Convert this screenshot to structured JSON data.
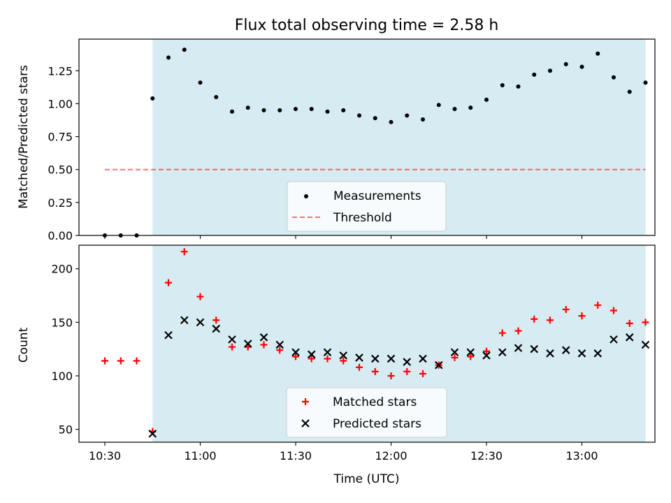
{
  "title": "Flux total observing time = 2.58 h",
  "colors": {
    "span": "#add8e6",
    "measurements": "#000000",
    "threshold": "#ff0000",
    "matched": "#ff0000",
    "predicted": "#000000"
  },
  "chart_data": [
    {
      "type": "scatter",
      "title": "Flux total observing time = 2.58 h",
      "xlabel": "",
      "ylabel": "Matched/Predicted stars",
      "ylim": [
        0.0,
        1.49
      ],
      "yticks": [
        0.0,
        0.25,
        0.5,
        0.75,
        1.0,
        1.25
      ],
      "ytick_labels": [
        "0.00",
        "0.25",
        "0.50",
        "0.75",
        "1.00",
        "1.25"
      ],
      "xticks": [
        "10:30",
        "11:00",
        "11:30",
        "12:00",
        "12:30",
        "13:00"
      ],
      "show_xticklabels": false,
      "x": [
        "10:30",
        "10:35",
        "10:40",
        "10:45",
        "10:50",
        "10:55",
        "11:00",
        "11:05",
        "11:10",
        "11:15",
        "11:20",
        "11:25",
        "11:30",
        "11:35",
        "11:40",
        "11:45",
        "11:50",
        "11:55",
        "12:00",
        "12:05",
        "12:10",
        "12:15",
        "12:20",
        "12:25",
        "12:30",
        "12:35",
        "12:40",
        "12:45",
        "12:50",
        "12:55",
        "13:00",
        "13:05",
        "13:10",
        "13:15",
        "13:20"
      ],
      "highlight_span": [
        "10:45",
        "13:20"
      ],
      "series": [
        {
          "name": "Measurements",
          "marker": "dot",
          "values": [
            0.0,
            0.0,
            0.0,
            1.04,
            1.35,
            1.41,
            1.16,
            1.05,
            0.94,
            0.97,
            0.95,
            0.95,
            0.96,
            0.96,
            0.94,
            0.95,
            0.91,
            0.89,
            0.86,
            0.91,
            0.88,
            0.99,
            0.96,
            0.97,
            1.03,
            1.14,
            1.13,
            1.22,
            1.25,
            1.3,
            1.28,
            1.38,
            1.2,
            1.09,
            1.16
          ]
        }
      ],
      "threshold": {
        "name": "Threshold",
        "value": 0.5,
        "x_start": "10:30",
        "x_end": "13:20",
        "style": "dashed"
      },
      "legend": [
        "Measurements",
        "Threshold"
      ],
      "legend_position": "lower center"
    },
    {
      "type": "scatter",
      "xlabel": "Time (UTC)",
      "ylabel": "Count",
      "ylim": [
        38,
        222
      ],
      "yticks": [
        50,
        100,
        150,
        200
      ],
      "ytick_labels": [
        "50",
        "100",
        "150",
        "200"
      ],
      "xticks": [
        "10:30",
        "11:00",
        "11:30",
        "12:00",
        "12:30",
        "13:00"
      ],
      "x": [
        "10:30",
        "10:35",
        "10:40",
        "10:45",
        "10:50",
        "10:55",
        "11:00",
        "11:05",
        "11:10",
        "11:15",
        "11:20",
        "11:25",
        "11:30",
        "11:35",
        "11:40",
        "11:45",
        "11:50",
        "11:55",
        "12:00",
        "12:05",
        "12:10",
        "12:15",
        "12:20",
        "12:25",
        "12:30",
        "12:35",
        "12:40",
        "12:45",
        "12:50",
        "12:55",
        "13:00",
        "13:05",
        "13:10",
        "13:15",
        "13:20"
      ],
      "highlight_span": [
        "10:45",
        "13:20"
      ],
      "series": [
        {
          "name": "Matched stars",
          "marker": "plus",
          "values": [
            114,
            114,
            114,
            48,
            187,
            216,
            174,
            152,
            127,
            127,
            129,
            124,
            118,
            116,
            116,
            114,
            108,
            104,
            100,
            104,
            102,
            110,
            117,
            118,
            123,
            140,
            142,
            153,
            152,
            162,
            156,
            166,
            161,
            149,
            150
          ]
        },
        {
          "name": "Predicted stars",
          "marker": "x",
          "values": [
            null,
            null,
            null,
            46,
            138,
            152,
            150,
            144,
            134,
            130,
            136,
            129,
            122,
            120,
            122,
            119,
            117,
            116,
            116,
            113,
            116,
            110,
            122,
            122,
            119,
            122,
            126,
            125,
            121,
            124,
            121,
            121,
            134,
            136,
            129
          ]
        }
      ],
      "legend": [
        "Matched stars",
        "Predicted stars"
      ],
      "legend_position": "lower center"
    }
  ]
}
